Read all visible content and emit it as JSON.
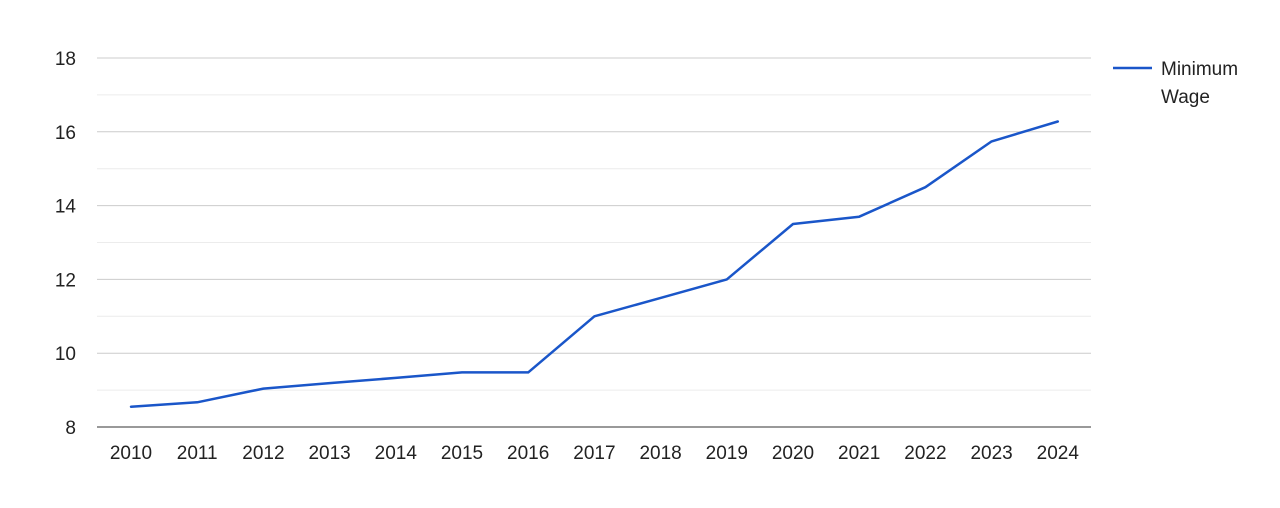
{
  "chart_data": {
    "type": "line",
    "title": "",
    "xlabel": "",
    "ylabel": "",
    "x": [
      "2010",
      "2011",
      "2012",
      "2013",
      "2014",
      "2015",
      "2016",
      "2017",
      "2018",
      "2019",
      "2020",
      "2021",
      "2022",
      "2023",
      "2024"
    ],
    "series": [
      {
        "name": "Minimum Wage",
        "color": "#1a56c9",
        "values": [
          8.55,
          8.67,
          9.04,
          9.19,
          9.33,
          9.48,
          9.48,
          11.0,
          11.5,
          12.0,
          13.5,
          13.7,
          14.5,
          15.74,
          16.28
        ]
      }
    ],
    "ylim": [
      8,
      18
    ],
    "yticks": [
      "8",
      "10",
      "12",
      "14",
      "16",
      "18"
    ],
    "grid": true,
    "legend_position": "right"
  },
  "legend": {
    "line1": "Minimum",
    "line2": "Wage"
  }
}
